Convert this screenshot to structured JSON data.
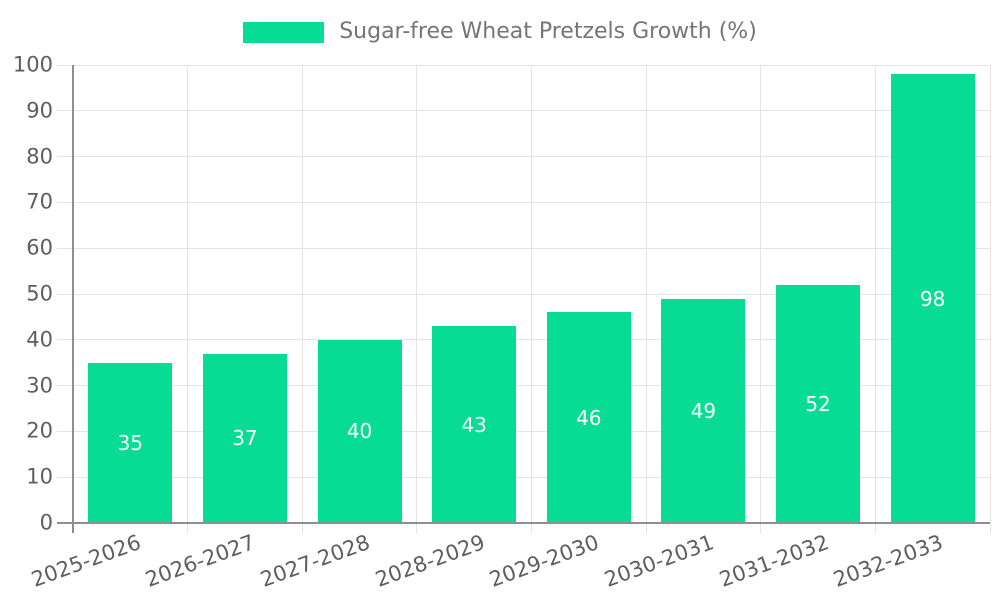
{
  "chart_data": {
    "type": "bar",
    "title": "Sugar-free Wheat Pretzels Growth (%)",
    "legend_entries": [
      "Sugar-free Wheat Pretzels Growth (%)"
    ],
    "legend_position": "top-center",
    "categories": [
      "2025-2026",
      "2026-2027",
      "2027-2028",
      "2028-2029",
      "2029-2030",
      "2030-2031",
      "2031-2032",
      "2032-2033"
    ],
    "values": [
      35,
      37,
      40,
      43,
      46,
      49,
      52,
      98
    ],
    "bar_value_labels": [
      "35",
      "37",
      "40",
      "43",
      "46",
      "49",
      "52",
      "98"
    ],
    "xlabel": "",
    "ylabel": "",
    "ylim": [
      0,
      100
    ],
    "yticks": [
      0,
      10,
      20,
      30,
      40,
      50,
      60,
      70,
      80,
      90,
      100
    ],
    "grid": true,
    "x_tick_label_rotation_deg": -20,
    "colors": {
      "bar": "#07DC94",
      "bar_value_label": "#FFFFFF",
      "grid_line": "#E4E4E4",
      "axis_line": "#8F8F8F",
      "tick_label_text": "#5E5E5E",
      "legend_text": "#757575",
      "background": "#FFFFFF"
    }
  }
}
